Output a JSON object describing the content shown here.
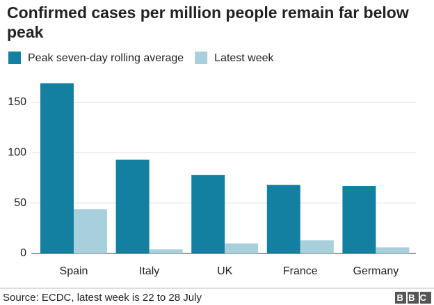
{
  "chart_data": {
    "type": "bar",
    "title": "Confirmed cases per million people remain far below peak",
    "categories": [
      "Spain",
      "Italy",
      "UK",
      "France",
      "Germany"
    ],
    "series": [
      {
        "name": "Peak seven-day rolling average",
        "color": "#1380a1",
        "values": [
          169,
          93,
          78,
          68,
          67
        ]
      },
      {
        "name": "Latest week",
        "color": "#a8d0dc",
        "values": [
          44,
          4,
          10,
          13,
          6
        ]
      }
    ],
    "ylim": [
      0,
      170
    ],
    "yticks": [
      0,
      50,
      100,
      150
    ],
    "grid": true,
    "source": "Source: ECDC, latest week is 22 to 28 July",
    "logo": "BBC"
  }
}
